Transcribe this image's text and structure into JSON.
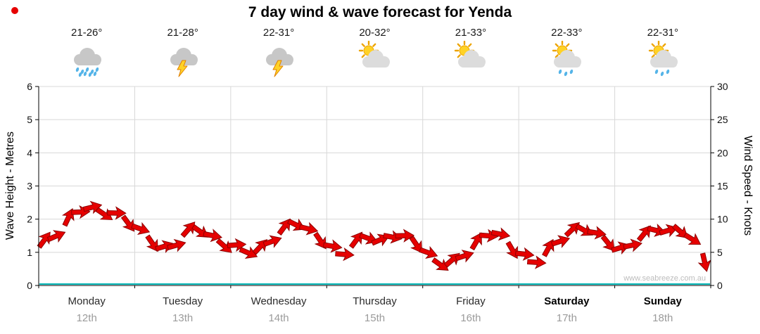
{
  "title": "7 day wind & wave forecast for Yenda",
  "watermark": "www.seabreeze.com.au",
  "days": [
    {
      "name": "Monday",
      "date": "12th",
      "temp": "21-26°",
      "icon": "rain",
      "bold": false
    },
    {
      "name": "Tuesday",
      "date": "13th",
      "temp": "21-28°",
      "icon": "storm",
      "bold": false
    },
    {
      "name": "Wednesday",
      "date": "14th",
      "temp": "22-31°",
      "icon": "storm",
      "bold": false
    },
    {
      "name": "Thursday",
      "date": "15th",
      "temp": "20-32°",
      "icon": "sun-cloud",
      "bold": false
    },
    {
      "name": "Friday",
      "date": "16th",
      "temp": "21-33°",
      "icon": "sun-cloud",
      "bold": false
    },
    {
      "name": "Saturday",
      "date": "17th",
      "temp": "22-33°",
      "icon": "sun-shower",
      "bold": true
    },
    {
      "name": "Sunday",
      "date": "18th",
      "temp": "22-31°",
      "icon": "sun-shower",
      "bold": true
    }
  ],
  "left_axis": {
    "label": "Wave Height - Metres",
    "min": 0,
    "max": 6,
    "ticks": [
      0,
      1,
      2,
      3,
      4,
      5,
      6
    ]
  },
  "right_axis": {
    "label": "Wind Speed - Knots",
    "min": 0,
    "max": 30,
    "ticks": [
      0,
      5,
      10,
      15,
      20,
      25,
      30
    ]
  },
  "chart_data": {
    "type": "line",
    "title": "7 day wind & wave forecast for Yenda",
    "x_categories": [
      "Monday 12th",
      "Tuesday 13th",
      "Wednesday 14th",
      "Thursday 15th",
      "Friday 16th",
      "Saturday 17th",
      "Sunday 18th"
    ],
    "points_per_day": 8,
    "grid": true,
    "legend": "none",
    "left_axis_range": [
      0,
      6
    ],
    "right_axis_range": [
      0,
      30
    ],
    "series": [
      {
        "name": "Wind Speed",
        "unit": "knots",
        "axis": "right",
        "marker": "red-wind-arrow",
        "values": [
          6.6,
          7.8,
          10.0,
          11.4,
          11.5,
          11.0,
          10.6,
          9.6,
          8.2,
          6.6,
          5.6,
          6.4,
          8.2,
          8.4,
          7.2,
          6.2,
          5.8,
          5.2,
          5.6,
          7.0,
          8.6,
          9.4,
          8.2,
          7.0,
          5.6,
          5.0,
          6.6,
          7.4,
          6.6,
          7.6,
          7.2,
          6.4,
          4.6,
          3.4,
          3.6,
          4.8,
          6.4,
          7.8,
          7.4,
          5.6,
          4.4,
          3.8,
          5.4,
          7.0,
          8.2,
          8.6,
          7.6,
          6.6,
          5.4,
          6.4,
          7.6,
          8.6,
          8.0,
          8.4,
          6.6,
          3.8
        ]
      },
      {
        "name": "Wave Height",
        "unit": "metres",
        "axis": "left",
        "style": "teal-line",
        "values_constant": 0.05
      }
    ]
  },
  "colors": {
    "arrow": "#e60000",
    "arrow_outline": "#8f0000",
    "grid": "#d8d8d8",
    "axis": "#000000",
    "baseline": "#00b4b4",
    "tick_label": "#111111",
    "day_label": "#2b2b2b",
    "date_label": "#9b9b9b",
    "watermark": "#bdbdbd"
  },
  "icon_colors": {
    "sun": "#ffd226",
    "sun_stroke": "#eda400",
    "cloud": "#dcdcdc",
    "cloud_dark": "#c7c7c7",
    "rain": "#55b4e8",
    "bolt": "#ffd226",
    "bolt_stroke": "#e08000"
  }
}
